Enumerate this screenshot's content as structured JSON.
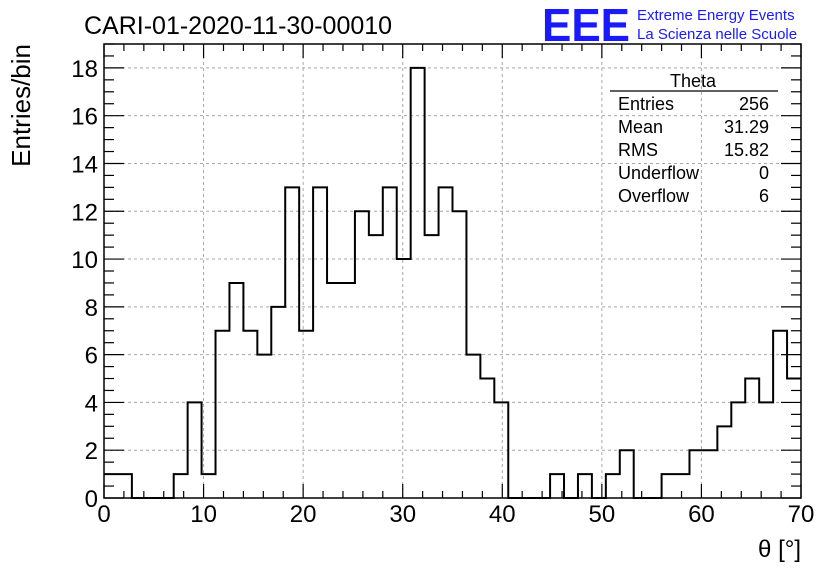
{
  "chart_data": {
    "type": "histogram",
    "title": "CARI-01-2020-11-30-00010",
    "xlabel": "θ [°]",
    "ylabel": "Entries/bin",
    "xlim": [
      0,
      70
    ],
    "ylim": [
      0,
      19
    ],
    "bin_width": 1.4,
    "xticks": [
      0,
      10,
      20,
      30,
      40,
      50,
      60,
      70
    ],
    "yticks": [
      0,
      2,
      4,
      6,
      8,
      10,
      12,
      14,
      16,
      18
    ],
    "grid": true,
    "values": [
      1,
      1,
      0,
      0,
      0,
      1,
      4,
      1,
      7,
      9,
      7,
      6,
      8,
      13,
      7,
      13,
      9,
      9,
      12,
      11,
      13,
      10,
      18,
      11,
      13,
      12,
      6,
      5,
      4,
      0,
      0,
      0,
      1,
      0,
      1,
      0,
      1,
      2,
      0,
      0,
      1,
      1,
      2,
      2,
      3,
      4,
      5,
      4,
      7,
      5
    ],
    "line_color": "#000000"
  },
  "stats_box": {
    "title": "Theta",
    "rows": [
      {
        "label": "Entries",
        "value": "256"
      },
      {
        "label": "Mean",
        "value": "31.29"
      },
      {
        "label": "RMS",
        "value": "15.82"
      },
      {
        "label": "Underflow",
        "value": "0"
      },
      {
        "label": "Overflow",
        "value": "6"
      }
    ]
  },
  "logo": {
    "mark": "EEE",
    "line1": "Extreme Energy Events",
    "line2": "La Scienza nelle Scuole",
    "color": "#1a1aff"
  }
}
